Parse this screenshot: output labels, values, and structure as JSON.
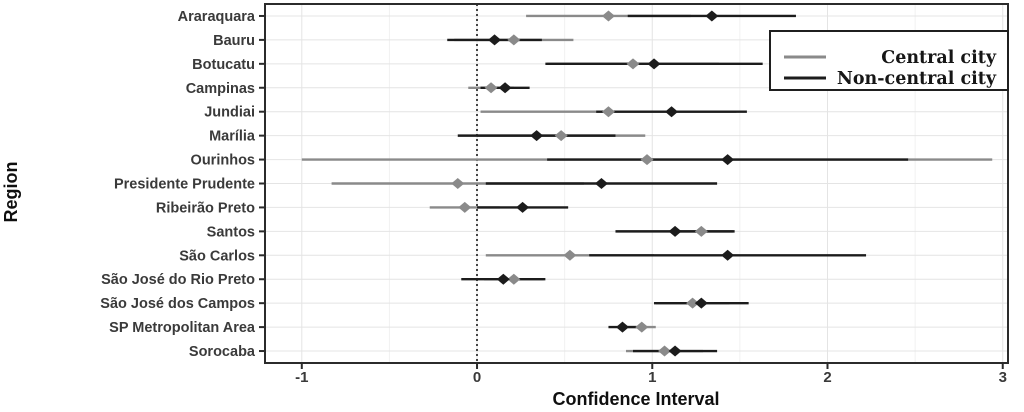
{
  "figure": {
    "background": "#ffffff",
    "panel_border_color": "#2b2b2b",
    "grid_major_color": "#e4e4e4",
    "grid_minor_color": "#f1f1f1",
    "tick_color": "#2b2b2b"
  },
  "chart_data": {
    "type": "scatter",
    "subtype": "forest-plot-dot-whisker",
    "title": "",
    "xlabel": "Confidence Interval",
    "ylabel": "Region",
    "xlim": [
      -1.21,
      3.03
    ],
    "xticks": [
      -1,
      0,
      1,
      2,
      3
    ],
    "grid": true,
    "legend_position": "top-right",
    "reference_line_x": 0,
    "marker_shape": "diamond",
    "categories": [
      "Araraquara",
      "Bauru",
      "Botucatu",
      "Campinas",
      "Jundiai",
      "Marília",
      "Ourinhos",
      "Presidente Prudente",
      "Ribeirão Preto",
      "Santos",
      "São Carlos",
      "São José do Rio Preto",
      "São José dos Campos",
      "SP Metropolitan Area",
      "Sorocaba"
    ],
    "series": [
      {
        "name": "Central city",
        "color": "#8a8a8a",
        "points": [
          {
            "region": "Araraquara",
            "estimate": 0.75,
            "ci_low": 0.28,
            "ci_high": 1.22
          },
          {
            "region": "Bauru",
            "estimate": 0.21,
            "ci_low": -0.13,
            "ci_high": 0.55
          },
          {
            "region": "Botucatu",
            "estimate": 0.89,
            "ci_low": 0.4,
            "ci_high": 1.38
          },
          {
            "region": "Campinas",
            "estimate": 0.08,
            "ci_low": -0.05,
            "ci_high": 0.21
          },
          {
            "region": "Jundiai",
            "estimate": 0.75,
            "ci_low": 0.02,
            "ci_high": 1.48
          },
          {
            "region": "Marília",
            "estimate": 0.48,
            "ci_low": 0.0,
            "ci_high": 0.96
          },
          {
            "region": "Ourinhos",
            "estimate": 0.97,
            "ci_low": -1.0,
            "ci_high": 2.94
          },
          {
            "region": "Presidente Prudente",
            "estimate": -0.11,
            "ci_low": -0.83,
            "ci_high": 0.61
          },
          {
            "region": "Ribeirão Preto",
            "estimate": -0.07,
            "ci_low": -0.27,
            "ci_high": 0.13
          },
          {
            "region": "Santos",
            "estimate": 1.28,
            "ci_low": 1.1,
            "ci_high": 1.46
          },
          {
            "region": "São Carlos",
            "estimate": 0.53,
            "ci_low": 0.05,
            "ci_high": 1.01
          },
          {
            "region": "São José do Rio Preto",
            "estimate": 0.21,
            "ci_low": 0.04,
            "ci_high": 0.38
          },
          {
            "region": "São José dos Campos",
            "estimate": 1.23,
            "ci_low": 1.02,
            "ci_high": 1.44
          },
          {
            "region": "SP Metropolitan Area",
            "estimate": 0.94,
            "ci_low": 0.86,
            "ci_high": 1.02
          },
          {
            "region": "Sorocaba",
            "estimate": 1.07,
            "ci_low": 0.85,
            "ci_high": 1.29
          }
        ]
      },
      {
        "name": "Non-central city",
        "color": "#1c1c1c",
        "points": [
          {
            "region": "Araraquara",
            "estimate": 1.34,
            "ci_low": 0.86,
            "ci_high": 1.82
          },
          {
            "region": "Bauru",
            "estimate": 0.1,
            "ci_low": -0.17,
            "ci_high": 0.37
          },
          {
            "region": "Botucatu",
            "estimate": 1.01,
            "ci_low": 0.39,
            "ci_high": 1.63
          },
          {
            "region": "Campinas",
            "estimate": 0.16,
            "ci_low": 0.02,
            "ci_high": 0.3
          },
          {
            "region": "Jundiai",
            "estimate": 1.11,
            "ci_low": 0.68,
            "ci_high": 1.54
          },
          {
            "region": "Marília",
            "estimate": 0.34,
            "ci_low": -0.11,
            "ci_high": 0.79
          },
          {
            "region": "Ourinhos",
            "estimate": 1.43,
            "ci_low": 0.4,
            "ci_high": 2.46
          },
          {
            "region": "Presidente Prudente",
            "estimate": 0.71,
            "ci_low": 0.05,
            "ci_high": 1.37
          },
          {
            "region": "Ribeirão Preto",
            "estimate": 0.26,
            "ci_low": 0.0,
            "ci_high": 0.52
          },
          {
            "region": "Santos",
            "estimate": 1.13,
            "ci_low": 0.79,
            "ci_high": 1.47
          },
          {
            "region": "São Carlos",
            "estimate": 1.43,
            "ci_low": 0.64,
            "ci_high": 2.22
          },
          {
            "region": "São José do Rio Preto",
            "estimate": 0.15,
            "ci_low": -0.09,
            "ci_high": 0.39
          },
          {
            "region": "São José dos Campos",
            "estimate": 1.28,
            "ci_low": 1.01,
            "ci_high": 1.55
          },
          {
            "region": "SP Metropolitan Area",
            "estimate": 0.83,
            "ci_low": 0.75,
            "ci_high": 0.91
          },
          {
            "region": "Sorocaba",
            "estimate": 1.13,
            "ci_low": 0.89,
            "ci_high": 1.37
          }
        ]
      }
    ]
  }
}
